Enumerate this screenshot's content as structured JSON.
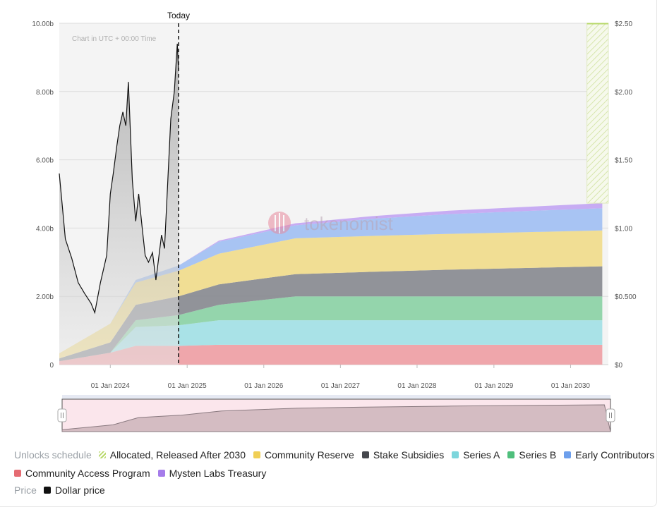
{
  "chart_data": {
    "type": "area",
    "note_text": "Chart in UTC + 00:00 Time",
    "today_label": "Today",
    "watermark": "tokenomist",
    "x_ticks": [
      "01 Jan 2024",
      "01 Jan 2025",
      "01 Jan 2026",
      "01 Jan 2027",
      "01 Jan 2028",
      "01 Jan 2029",
      "01 Jan 2030"
    ],
    "y_left_ticks": [
      "0",
      "2.00b",
      "4.00b",
      "6.00b",
      "8.00b",
      "10.00b"
    ],
    "y_right_ticks": [
      "$0",
      "$0.500",
      "$1.00",
      "$1.50",
      "$2.00",
      "$2.50"
    ],
    "ylim_left": [
      0,
      10
    ],
    "ylim_right": [
      0,
      2.5
    ],
    "x_range": [
      "2023-05-03",
      "2030-06-30"
    ],
    "today": "2024-11-21",
    "stacked_area": {
      "unit": "billions of tokens",
      "x": [
        "2023-05-03",
        "2024-01-01",
        "2024-05-01",
        "2024-11-21",
        "2025-06-01",
        "2026-06-01",
        "2027-06-01",
        "2028-06-01",
        "2029-06-01",
        "2030-06-01"
      ],
      "series": [
        {
          "name": "Community Access Program",
          "color": "#eea1a6",
          "values": [
            0.1,
            0.35,
            0.55,
            0.55,
            0.58,
            0.58,
            0.58,
            0.58,
            0.58,
            0.58
          ]
        },
        {
          "name": "Series A",
          "color": "#a4e0e6",
          "values": [
            0.0,
            0.0,
            0.55,
            0.6,
            0.72,
            0.72,
            0.72,
            0.72,
            0.72,
            0.72
          ]
        },
        {
          "name": "Series B",
          "color": "#8ed3a8",
          "values": [
            0.0,
            0.0,
            0.2,
            0.3,
            0.45,
            0.7,
            0.7,
            0.7,
            0.7,
            0.7
          ]
        },
        {
          "name": "Stake Subsidies",
          "color": "#8b8d93",
          "values": [
            0.08,
            0.3,
            0.45,
            0.55,
            0.6,
            0.65,
            0.72,
            0.78,
            0.83,
            0.88
          ]
        },
        {
          "name": "Community Reserve",
          "color": "#f0dc8e",
          "values": [
            0.15,
            0.55,
            0.65,
            0.75,
            0.9,
            1.05,
            1.05,
            1.05,
            1.05,
            1.05
          ]
        },
        {
          "name": "Early Contributors",
          "color": "#a3c1f2",
          "values": [
            0.0,
            0.0,
            0.08,
            0.15,
            0.35,
            0.38,
            0.5,
            0.58,
            0.62,
            0.65
          ]
        },
        {
          "name": "Mysten Labs Treasury",
          "color": "#c4a8f2",
          "values": [
            0.0,
            0.0,
            0.0,
            0.0,
            0.03,
            0.06,
            0.08,
            0.1,
            0.12,
            0.15
          ]
        }
      ],
      "allocated_after_2030": {
        "name": "Allocated, Released After 2030",
        "color": "#b8d86a",
        "from": "2030-03-20",
        "upper": 10
      }
    },
    "price_series": {
      "name": "Dollar price",
      "color": "#111111",
      "x": [
        "2023-05-03",
        "2023-05-15",
        "2023-06-01",
        "2023-07-01",
        "2023-08-01",
        "2023-09-01",
        "2023-10-01",
        "2023-10-19",
        "2023-11-15",
        "2023-12-15",
        "2024-01-01",
        "2024-01-15",
        "2024-02-01",
        "2024-02-15",
        "2024-03-01",
        "2024-03-15",
        "2024-03-27",
        "2024-04-15",
        "2024-05-01",
        "2024-05-15",
        "2024-06-01",
        "2024-06-15",
        "2024-07-01",
        "2024-07-20",
        "2024-08-05",
        "2024-08-20",
        "2024-09-01",
        "2024-09-15",
        "2024-10-01",
        "2024-10-15",
        "2024-11-01",
        "2024-11-15",
        "2024-11-21"
      ],
      "y": [
        1.4,
        1.2,
        0.92,
        0.78,
        0.6,
        0.52,
        0.45,
        0.38,
        0.6,
        0.8,
        1.25,
        1.4,
        1.6,
        1.75,
        1.85,
        1.75,
        2.07,
        1.35,
        1.05,
        1.25,
        1.0,
        0.8,
        0.75,
        0.82,
        0.62,
        0.8,
        0.95,
        0.85,
        1.35,
        1.8,
        2.0,
        2.35,
        2.15
      ]
    }
  },
  "legend": {
    "unlocks_heading": "Unlocks schedule",
    "price_heading": "Price",
    "row1": [
      {
        "label": "Allocated, Released After 2030",
        "color": "#b8d86a",
        "hatch": true
      },
      {
        "label": "Community Reserve",
        "color": "#f0cf55"
      },
      {
        "label": "Stake Subsidies",
        "color": "#45474d"
      },
      {
        "label": "Series A",
        "color": "#7dd6dc"
      },
      {
        "label": "Series B",
        "color": "#4fbf7c"
      },
      {
        "label": "Early Contributors",
        "color": "#6d9fec"
      }
    ],
    "row2": [
      {
        "label": "Community Access Program",
        "color": "#e56b72"
      },
      {
        "label": "Mysten Labs Treasury",
        "color": "#a57cea"
      }
    ],
    "row3": [
      {
        "label": "Dollar price",
        "color": "#111111"
      }
    ]
  }
}
